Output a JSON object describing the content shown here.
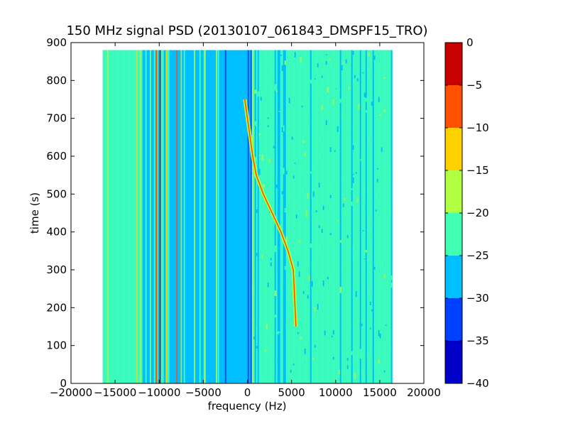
{
  "chart_data": {
    "type": "heatmap",
    "title": "150 MHz signal PSD (20130107_061843_DMSPF15_TRO)",
    "xlabel": "frequency (Hz)",
    "ylabel": "time (s)",
    "xlim": [
      -20000,
      20000
    ],
    "ylim": [
      0,
      900
    ],
    "xticks": [
      -20000,
      -15000,
      -10000,
      -5000,
      0,
      5000,
      10000,
      15000,
      20000
    ],
    "yticks": [
      0,
      100,
      200,
      300,
      400,
      500,
      600,
      700,
      800,
      900
    ],
    "data_extent": {
      "frequency": [
        -16400,
        16400
      ],
      "time": [
        0,
        880
      ]
    },
    "grid": false,
    "colorbar": {
      "range": [
        -40,
        0
      ],
      "ticks": [
        0,
        -5,
        -10,
        -15,
        -20,
        -25,
        -30,
        -35,
        -40
      ],
      "levels": [
        {
          "from": -40,
          "to": -35,
          "color": "#0000c8"
        },
        {
          "from": -35,
          "to": -30,
          "color": "#0040ff"
        },
        {
          "from": -30,
          "to": -25,
          "color": "#00bfff"
        },
        {
          "from": -25,
          "to": -20,
          "color": "#40ffb0"
        },
        {
          "from": -20,
          "to": -15,
          "color": "#b0ff40"
        },
        {
          "from": -15,
          "to": -10,
          "color": "#ffd000"
        },
        {
          "from": -10,
          "to": -5,
          "color": "#ff5000"
        },
        {
          "from": -5,
          "to": 0,
          "color": "#c80000"
        }
      ]
    },
    "signal_trace": {
      "points": [
        {
          "frequency": 5500,
          "time": 150
        },
        {
          "frequency": 5200,
          "time": 300
        },
        {
          "frequency": 4600,
          "time": 350
        },
        {
          "frequency": 3800,
          "time": 400
        },
        {
          "frequency": 2800,
          "time": 450
        },
        {
          "frequency": 1800,
          "time": 500
        },
        {
          "frequency": 1000,
          "time": 550
        },
        {
          "frequency": 600,
          "time": 600
        },
        {
          "frequency": 300,
          "time": 650
        },
        {
          "frequency": 0,
          "time": 700
        },
        {
          "frequency": -300,
          "time": 750
        }
      ]
    },
    "carrier_lines": [
      {
        "frequency": -12500,
        "level": -15
      },
      {
        "frequency": -11000,
        "level": -20
      },
      {
        "frequency": -10300,
        "level": -10
      },
      {
        "frequency": -9900,
        "level": -5
      },
      {
        "frequency": -9200,
        "level": -15
      },
      {
        "frequency": -8000,
        "level": -10
      },
      {
        "frequency": -7500,
        "level": -15
      },
      {
        "frequency": -6000,
        "level": -20
      },
      {
        "frequency": -4800,
        "level": -20
      },
      {
        "frequency": -3500,
        "level": -20
      },
      {
        "frequency": 600,
        "level": -20
      }
    ]
  }
}
